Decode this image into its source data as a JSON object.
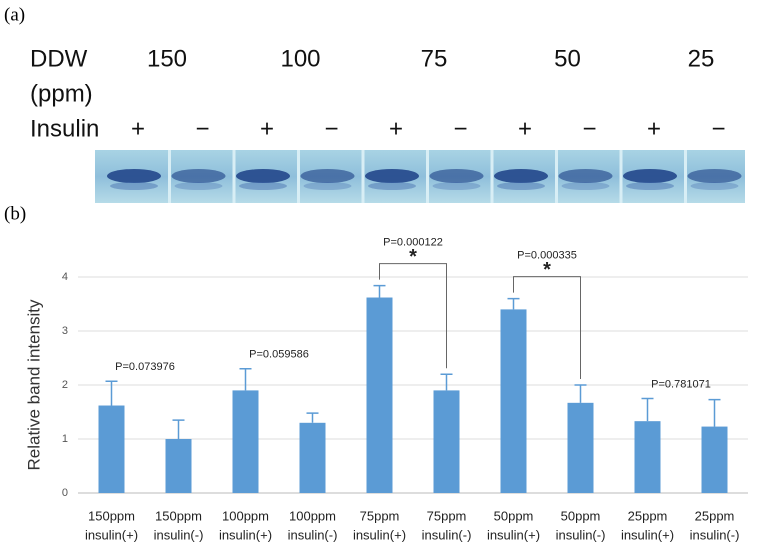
{
  "figure": {
    "panel_a": {
      "label": "(a)",
      "row1_label": "DDW",
      "row2_label": "(ppm)",
      "concentrations": [
        150,
        100,
        75,
        50,
        25
      ],
      "insulin_label": "Insulin",
      "insulin_signs": [
        "+",
        "−",
        "+",
        "−",
        "+",
        "−",
        "+",
        "−",
        "+",
        "−"
      ]
    },
    "panel_b_label": "(b)"
  },
  "chart_data": {
    "type": "bar",
    "y_label": "Relative band intensity",
    "categories": [
      [
        "150ppm",
        "insulin(+)"
      ],
      [
        "150ppm",
        "insulin(-)"
      ],
      [
        "100ppm",
        "insulin(+)"
      ],
      [
        "100ppm",
        "insulin(-)"
      ],
      [
        "75ppm",
        "insulin(+)"
      ],
      [
        "75ppm",
        "insulin(-)"
      ],
      [
        "50ppm",
        "insulin(+)"
      ],
      [
        "50ppm",
        "insulin(-)"
      ],
      [
        "25ppm",
        "insulin(+)"
      ],
      [
        "25ppm",
        "insulin(-)"
      ]
    ],
    "values": [
      1.62,
      1.0,
      1.9,
      1.3,
      3.62,
      1.9,
      3.4,
      1.67,
      1.33,
      1.23
    ],
    "errors": [
      0.45,
      0.35,
      0.4,
      0.18,
      0.22,
      0.3,
      0.2,
      0.33,
      0.42,
      0.5
    ],
    "color": "#5b9bd5",
    "ylim": [
      0,
      4.5
    ],
    "yticks": [
      0,
      1,
      2,
      3,
      4
    ],
    "grid": true,
    "annotations": [
      "P=0.073976",
      "P=0.059586",
      "P=0.000122",
      "P=0.000335",
      "P=0.781071"
    ],
    "significance_marks": [
      "*",
      "*"
    ]
  }
}
